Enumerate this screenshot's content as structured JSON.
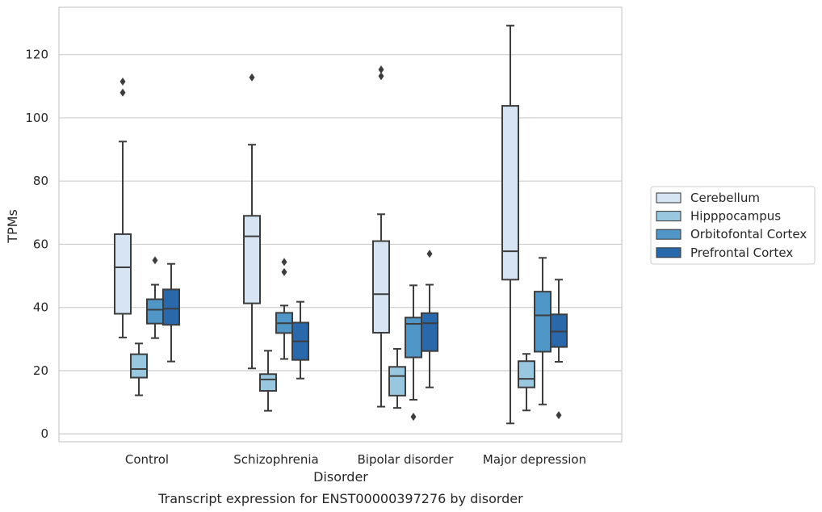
{
  "caption": "Transcript expression for ENST00000397276 by disorder",
  "chart_data": {
    "type": "box",
    "title": "",
    "xlabel": "Disorder",
    "ylabel": "TPMs",
    "ylim": [
      -2.5,
      135
    ],
    "yticks": [
      0,
      20,
      40,
      60,
      80,
      100,
      120
    ],
    "grid": "horizontal",
    "legend_position": "right",
    "categories": [
      "Control",
      "Schizophrenia",
      "Bipolar disorder",
      "Major depression"
    ],
    "series": [
      {
        "name": "Cerebellum",
        "color": "#d6e4f3",
        "boxes": [
          {
            "whislo": 30.5,
            "q1": 38.0,
            "med": 52.7,
            "q3": 63.2,
            "whishi": 92.5,
            "fliers": [
              108.0,
              111.5
            ]
          },
          {
            "whislo": 20.7,
            "q1": 41.3,
            "med": 62.5,
            "q3": 69.0,
            "whishi": 91.5,
            "fliers": [
              112.8
            ]
          },
          {
            "whislo": 8.6,
            "q1": 32.0,
            "med": 44.2,
            "q3": 61.0,
            "whishi": 69.5,
            "fliers": [
              113.2,
              115.3
            ]
          },
          {
            "whislo": 3.3,
            "q1": 48.8,
            "med": 57.8,
            "q3": 103.8,
            "whishi": 129.2,
            "fliers": []
          }
        ]
      },
      {
        "name": "Hipppocampus",
        "color": "#9ac7e0",
        "boxes": [
          {
            "whislo": 12.2,
            "q1": 17.8,
            "med": 20.5,
            "q3": 25.2,
            "whishi": 28.6,
            "fliers": []
          },
          {
            "whislo": 7.3,
            "q1": 13.6,
            "med": 17.2,
            "q3": 18.9,
            "whishi": 26.3,
            "fliers": []
          },
          {
            "whislo": 8.2,
            "q1": 12.1,
            "med": 18.3,
            "q3": 21.2,
            "whishi": 26.9,
            "fliers": []
          },
          {
            "whislo": 7.4,
            "q1": 14.7,
            "med": 17.4,
            "q3": 23.0,
            "whishi": 25.3,
            "fliers": []
          }
        ]
      },
      {
        "name": "Orbitofontal Cortex",
        "color": "#5097c7",
        "boxes": [
          {
            "whislo": 30.3,
            "q1": 34.9,
            "med": 39.3,
            "q3": 42.6,
            "whishi": 47.2,
            "fliers": [
              54.9
            ]
          },
          {
            "whislo": 23.7,
            "q1": 31.9,
            "med": 35.0,
            "q3": 38.3,
            "whishi": 40.6,
            "fliers": [
              51.2,
              54.4
            ]
          },
          {
            "whislo": 10.8,
            "q1": 24.2,
            "med": 34.8,
            "q3": 36.8,
            "whishi": 47.0,
            "fliers": [
              5.4
            ]
          },
          {
            "whislo": 9.3,
            "q1": 26.0,
            "med": 37.5,
            "q3": 45.0,
            "whishi": 55.7,
            "fliers": []
          }
        ]
      },
      {
        "name": "Prefrontal Cortex",
        "color": "#2968ab",
        "boxes": [
          {
            "whislo": 22.9,
            "q1": 34.5,
            "med": 39.6,
            "q3": 45.7,
            "whishi": 53.8,
            "fliers": []
          },
          {
            "whislo": 17.5,
            "q1": 23.4,
            "med": 29.3,
            "q3": 35.2,
            "whishi": 41.8,
            "fliers": []
          },
          {
            "whislo": 14.7,
            "q1": 26.2,
            "med": 35.0,
            "q3": 38.2,
            "whishi": 47.2,
            "fliers": [
              57.0
            ]
          },
          {
            "whislo": 22.8,
            "q1": 27.5,
            "med": 32.4,
            "q3": 37.8,
            "whishi": 48.8,
            "fliers": [
              5.9
            ]
          }
        ]
      }
    ]
  }
}
